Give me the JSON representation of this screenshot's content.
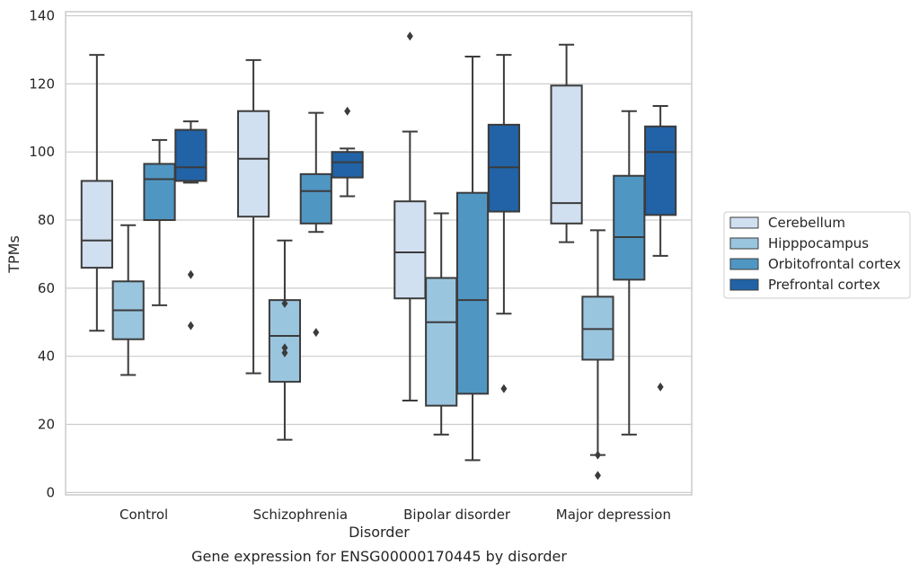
{
  "chart_data": {
    "type": "box",
    "xlabel": "Disorder",
    "ylabel": "TPMs",
    "caption": "Gene expression for ENSG00000170445 by disorder",
    "ylim": [
      0,
      140
    ],
    "yticks": [
      0,
      20,
      40,
      60,
      80,
      100,
      120,
      140
    ],
    "grid": true,
    "legend_position": "right",
    "categories": [
      "Control",
      "Schizophrenia",
      "Bipolar disorder",
      "Major depression"
    ],
    "series": [
      {
        "name": "Cerebellum",
        "color": "#d1e0f0",
        "boxes": [
          {
            "whislo": 47.5,
            "q1": 66,
            "med": 74,
            "q3": 91.5,
            "whishi": 128.5,
            "fliers": []
          },
          {
            "whislo": 35,
            "q1": 81,
            "med": 98,
            "q3": 112,
            "whishi": 127,
            "fliers": []
          },
          {
            "whislo": 27,
            "q1": 57,
            "med": 70.5,
            "q3": 85.5,
            "whishi": 106,
            "fliers": [
              134
            ]
          },
          {
            "whislo": 73.5,
            "q1": 79,
            "med": 85,
            "q3": 119.5,
            "whishi": 131.5,
            "fliers": []
          }
        ]
      },
      {
        "name": "Hipppocampus",
        "color": "#9ac5de",
        "boxes": [
          {
            "whislo": 34.5,
            "q1": 45,
            "med": 53.5,
            "q3": 62,
            "whishi": 78.5,
            "fliers": []
          },
          {
            "whislo": 15.5,
            "q1": 32.5,
            "med": 46,
            "q3": 56.5,
            "whishi": 74,
            "fliers": [
              55.5,
              42.5,
              41
            ]
          },
          {
            "whislo": 17,
            "q1": 25.5,
            "med": 50,
            "q3": 63,
            "whishi": 82,
            "fliers": []
          },
          {
            "whislo": 11,
            "q1": 39,
            "med": 48,
            "q3": 57.5,
            "whishi": 77,
            "fliers": [
              11,
              5
            ]
          }
        ]
      },
      {
        "name": "Orbitofrontal cortex",
        "color": "#5096c3",
        "boxes": [
          {
            "whislo": 55,
            "q1": 80,
            "med": 92,
            "q3": 96.5,
            "whishi": 103.5,
            "fliers": []
          },
          {
            "whislo": 76.5,
            "q1": 79,
            "med": 88.5,
            "q3": 93.5,
            "whishi": 111.5,
            "fliers": [
              47
            ]
          },
          {
            "whislo": 9.5,
            "q1": 29,
            "med": 56.5,
            "q3": 88,
            "whishi": 128,
            "fliers": []
          },
          {
            "whislo": 17,
            "q1": 62.5,
            "med": 75,
            "q3": 93,
            "whishi": 112,
            "fliers": []
          }
        ]
      },
      {
        "name": "Prefrontal cortex",
        "color": "#2163a6",
        "boxes": [
          {
            "whislo": 91,
            "q1": 91.5,
            "med": 95.5,
            "q3": 106.5,
            "whishi": 109,
            "fliers": [
              64,
              49
            ]
          },
          {
            "whislo": 87,
            "q1": 92.5,
            "med": 97,
            "q3": 100,
            "whishi": 101,
            "fliers": [
              112
            ]
          },
          {
            "whislo": 52.5,
            "q1": 82.5,
            "med": 95.5,
            "q3": 108,
            "whishi": 128.5,
            "fliers": [
              30.5
            ]
          },
          {
            "whislo": 69.5,
            "q1": 81.5,
            "med": 100,
            "q3": 107.5,
            "whishi": 113.5,
            "fliers": [
              31
            ]
          }
        ]
      }
    ]
  }
}
